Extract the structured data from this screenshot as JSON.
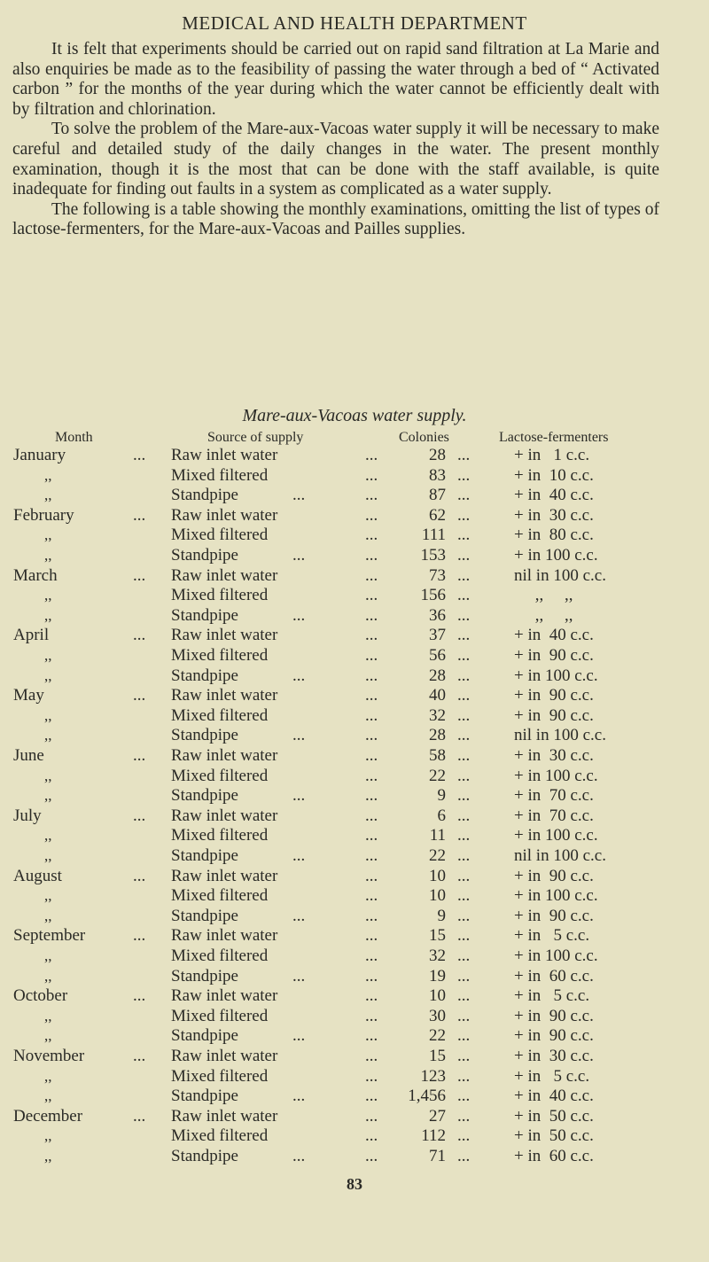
{
  "header": {
    "title": "MEDICAL AND HEALTH DEPARTMENT"
  },
  "paragraphs": [
    "It is felt that experiments should be carried out on rapid sand filtration at La Marie and also enquiries be made as to the feasibility of passing the water through a bed of “ Activated carbon ” for the months of the year during which the water cannot be efficiently dealt with by filtration and chlorination.",
    "To solve the problem of the Mare-aux-Vacoas water supply it will be necessary to make careful and detailed study of the daily changes in the water. The present monthly examination, though it is the most that can be done with the staff available, is quite inadequate for finding out faults in a system as complicated as a water supply.",
    "The following is a table showing the monthly examinations, omitting the list of types of lactose-fermenters, for the Mare-aux-Vacoas and Pailles supplies."
  ],
  "table": {
    "caption": "Mare-aux-Vacoas water supply.",
    "headers": {
      "month": "Month",
      "source": "Source of supply",
      "colonies": "Colonies",
      "lactose": "Lactose-fermenters"
    },
    "rows": [
      {
        "month": "January",
        "source": "Raw inlet water",
        "colonies": "28",
        "lactose": "+ in   1 c.c."
      },
      {
        "month": ",,",
        "source": "Mixed filtered",
        "colonies": "83",
        "lactose": "+ in  10 c.c."
      },
      {
        "month": ",,",
        "source": "Standpipe",
        "colonies": "87",
        "lactose": "+ in  40 c.c."
      },
      {
        "month": "February",
        "source": "Raw inlet water",
        "colonies": "62",
        "lactose": "+ in  30 c.c."
      },
      {
        "month": ",,",
        "source": "Mixed filtered",
        "colonies": "111",
        "lactose": "+ in  80 c.c."
      },
      {
        "month": ",,",
        "source": "Standpipe",
        "colonies": "153",
        "lactose": "+ in 100 c.c."
      },
      {
        "month": "March",
        "source": "Raw inlet water",
        "colonies": "73",
        "lactose": "nil in 100 c.c."
      },
      {
        "month": ",,",
        "source": "Mixed filtered",
        "colonies": "156",
        "lactose": "     ,,     ,,"
      },
      {
        "month": ",,",
        "source": "Standpipe",
        "colonies": "36",
        "lactose": "     ,,     ,,"
      },
      {
        "month": "April",
        "source": "Raw inlet water",
        "colonies": "37",
        "lactose": "+ in  40 c.c."
      },
      {
        "month": ",,",
        "source": "Mixed filtered",
        "colonies": "56",
        "lactose": "+ in  90 c.c."
      },
      {
        "month": ",,",
        "source": "Standpipe",
        "colonies": "28",
        "lactose": "+ in 100 c.c."
      },
      {
        "month": "May",
        "source": "Raw inlet water",
        "colonies": "40",
        "lactose": "+ in  90 c.c."
      },
      {
        "month": ",,",
        "source": "Mixed filtered",
        "colonies": "32",
        "lactose": "+ in  90 c.c."
      },
      {
        "month": ",,",
        "source": "Standpipe",
        "colonies": "28",
        "lactose": "nil in 100 c.c."
      },
      {
        "month": "June",
        "source": "Raw inlet water",
        "colonies": "58",
        "lactose": "+ in  30 c.c."
      },
      {
        "month": ",,",
        "source": "Mixed filtered",
        "colonies": "22",
        "lactose": "+ in 100 c.c."
      },
      {
        "month": ",,",
        "source": "Standpipe",
        "colonies": "9",
        "lactose": "+ in  70 c.c."
      },
      {
        "month": "July",
        "source": "Raw inlet water",
        "colonies": "6",
        "lactose": "+ in  70 c.c."
      },
      {
        "month": ",,",
        "source": "Mixed filtered",
        "colonies": "11",
        "lactose": "+ in 100 c.c."
      },
      {
        "month": ",,",
        "source": "Standpipe",
        "colonies": "22",
        "lactose": "nil in 100 c.c."
      },
      {
        "month": "August",
        "source": "Raw inlet water",
        "colonies": "10",
        "lactose": "+ in  90 c.c."
      },
      {
        "month": ",,",
        "source": "Mixed filtered",
        "colonies": "10",
        "lactose": "+ in 100 c.c."
      },
      {
        "month": ",,",
        "source": "Standpipe",
        "colonies": "9",
        "lactose": "+ in  90 c.c."
      },
      {
        "month": "September",
        "source": "Raw inlet water",
        "colonies": "15",
        "lactose": "+ in   5 c.c."
      },
      {
        "month": ",,",
        "source": "Mixed filtered",
        "colonies": "32",
        "lactose": "+ in 100 c.c."
      },
      {
        "month": ",,",
        "source": "Standpipe",
        "colonies": "19",
        "lactose": "+ in  60 c.c."
      },
      {
        "month": "October",
        "source": "Raw inlet water",
        "colonies": "10",
        "lactose": "+ in   5 c.c."
      },
      {
        "month": ",,",
        "source": "Mixed filtered",
        "colonies": "30",
        "lactose": "+ in  90 c.c."
      },
      {
        "month": ",,",
        "source": "Standpipe",
        "colonies": "22",
        "lactose": "+ in  90 c.c."
      },
      {
        "month": "November",
        "source": "Raw inlet water",
        "colonies": "15",
        "lactose": "+ in  30 c.c."
      },
      {
        "month": ",,",
        "source": "Mixed filtered",
        "colonies": "123",
        "lactose": "+ in   5 c.c."
      },
      {
        "month": ",,",
        "source": "Standpipe",
        "colonies": "1,456",
        "lactose": "+ in  40 c.c."
      },
      {
        "month": "December",
        "source": "Raw inlet water",
        "colonies": "27",
        "lactose": "+ in  50 c.c."
      },
      {
        "month": ",,",
        "source": "Mixed filtered",
        "colonies": "112",
        "lactose": "+ in  50 c.c."
      },
      {
        "month": ",,",
        "source": "Standpipe",
        "colonies": "71",
        "lactose": "+ in  60 c.c."
      }
    ]
  },
  "page_number": "83"
}
